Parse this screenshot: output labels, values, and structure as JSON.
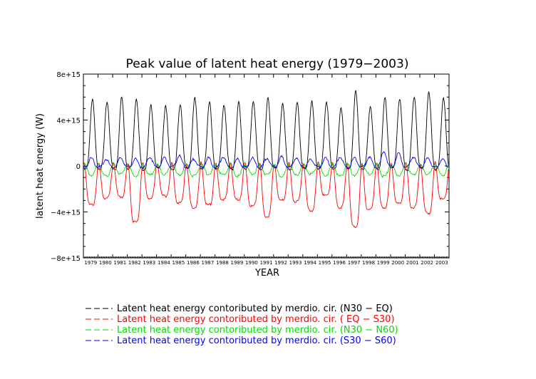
{
  "chart_data": {
    "type": "line",
    "title": "Peak value of latent heat energy (1979−2003)",
    "xlabel": "YEAR",
    "ylabel": "latent heat energy (W)",
    "xlim": [
      1979,
      2004
    ],
    "ylim": [
      -8000000000000000.0,
      8000000000000000.0
    ],
    "yticks": [
      {
        "value": 8000000000000000.0,
        "label": "8e+15"
      },
      {
        "value": 4000000000000000.0,
        "label": "4e+15"
      },
      {
        "value": 0,
        "label": "0"
      },
      {
        "value": -4000000000000000.0,
        "label": "−4e+15"
      },
      {
        "value": -8000000000000000.0,
        "label": "−8e+15"
      }
    ],
    "xtick_labels": [
      "1979",
      "1980",
      "1981",
      "1982",
      "1983",
      "1984",
      "1985",
      "1986",
      "1987",
      "1988",
      "1989",
      "1990",
      "1991",
      "1992",
      "1993",
      "1994",
      "1995",
      "1996",
      "1997",
      "1998",
      "1999",
      "2000",
      "2001",
      "2002",
      "2003"
    ],
    "legend_position": "bottom",
    "series": [
      {
        "name": "Latent heat energy contoributed by merdio. cir. (N30 −  EQ)",
        "color": "#000000",
        "annual_peaks": [
          5800000000000000.0,
          5600000000000000.0,
          6000000000000000.0,
          5900000000000000.0,
          5300000000000000.0,
          5200000000000000.0,
          5400000000000000.0,
          5900000000000000.0,
          5600000000000000.0,
          5300000000000000.0,
          5500000000000000.0,
          5700000000000000.0,
          5900000000000000.0,
          5400000000000000.0,
          5600000000000000.0,
          5600000000000000.0,
          5600000000000000.0,
          5100000000000000.0,
          6500000000000000.0,
          5200000000000000.0,
          5900000000000000.0,
          5900000000000000.0,
          6100000000000000.0,
          6400000000000000.0,
          6000000000000000.0
        ],
        "annual_troughs": [
          -300000000000000.0,
          -200000000000000.0,
          -300000000000000.0,
          -200000000000000.0,
          -300000000000000.0,
          -200000000000000.0,
          -300000000000000.0,
          -200000000000000.0,
          -300000000000000.0,
          -200000000000000.0,
          -300000000000000.0,
          -200000000000000.0,
          -300000000000000.0,
          -200000000000000.0,
          -300000000000000.0,
          -200000000000000.0,
          -300000000000000.0,
          -200000000000000.0,
          -300000000000000.0,
          -200000000000000.0,
          -300000000000000.0,
          -200000000000000.0,
          -300000000000000.0,
          -200000000000000.0,
          -300000000000000.0
        ]
      },
      {
        "name": "Latent heat energy contoributed by merdio. cir. ( EQ − S30)",
        "color": "#ff0000",
        "annual_peaks": [
          300000000000000.0,
          200000000000000.0,
          300000000000000.0,
          200000000000000.0,
          300000000000000.0,
          200000000000000.0,
          300000000000000.0,
          200000000000000.0,
          300000000000000.0,
          200000000000000.0,
          300000000000000.0,
          200000000000000.0,
          300000000000000.0,
          200000000000000.0,
          300000000000000.0,
          200000000000000.0,
          300000000000000.0,
          200000000000000.0,
          300000000000000.0,
          200000000000000.0,
          300000000000000.0,
          200000000000000.0,
          300000000000000.0,
          200000000000000.0,
          300000000000000.0
        ],
        "annual_troughs": [
          -3400000000000000.0,
          -2800000000000000.0,
          -2700000000000000.0,
          -4900000000000000.0,
          -2800000000000000.0,
          -2600000000000000.0,
          -3200000000000000.0,
          -3600000000000000.0,
          -3400000000000000.0,
          -2900000000000000.0,
          -2900000000000000.0,
          -3500000000000000.0,
          -4400000000000000.0,
          -3000000000000000.0,
          -3100000000000000.0,
          -3900000000000000.0,
          -2600000000000000.0,
          -3600000000000000.0,
          -5300000000000000.0,
          -3800000000000000.0,
          -3600000000000000.0,
          -3300000000000000.0,
          -3600000000000000.0,
          -4100000000000000.0,
          -2900000000000000.0
        ]
      },
      {
        "name": "Latent heat energy contoributed by merdio. cir. (N30 − N60)",
        "color": "#00dd00",
        "annual_peaks": [
          200000000000000.0,
          100000000000000.0,
          200000000000000.0,
          100000000000000.0,
          200000000000000.0,
          100000000000000.0,
          200000000000000.0,
          100000000000000.0,
          200000000000000.0,
          100000000000000.0,
          200000000000000.0,
          100000000000000.0,
          200000000000000.0,
          100000000000000.0,
          200000000000000.0,
          100000000000000.0,
          200000000000000.0,
          100000000000000.0,
          200000000000000.0,
          100000000000000.0,
          200000000000000.0,
          100000000000000.0,
          200000000000000.0,
          100000000000000.0,
          200000000000000.0
        ],
        "annual_troughs": [
          -800000000000000.0,
          -900000000000000.0,
          -700000000000000.0,
          -900000000000000.0,
          -800000000000000.0,
          -700000000000000.0,
          -800000000000000.0,
          -900000000000000.0,
          -700000000000000.0,
          -800000000000000.0,
          -900000000000000.0,
          -700000000000000.0,
          -800000000000000.0,
          -900000000000000.0,
          -800000000000000.0,
          -700000000000000.0,
          -800000000000000.0,
          -900000000000000.0,
          -800000000000000.0,
          -700000000000000.0,
          -900000000000000.0,
          -800000000000000.0,
          -800000000000000.0,
          -700000000000000.0,
          -800000000000000.0
        ]
      },
      {
        "name": "Latent heat energy contoributed by merdio. cir. (S30 − S60)",
        "color": "#0000ff",
        "annual_peaks": [
          700000000000000.0,
          600000000000000.0,
          700000000000000.0,
          600000000000000.0,
          800000000000000.0,
          700000000000000.0,
          900000000000000.0,
          600000000000000.0,
          700000000000000.0,
          800000000000000.0,
          600000000000000.0,
          700000000000000.0,
          700000000000000.0,
          800000000000000.0,
          700000000000000.0,
          600000000000000.0,
          700000000000000.0,
          800000000000000.0,
          700000000000000.0,
          800000000000000.0,
          1300000000000000.0,
          1100000000000000.0,
          800000000000000.0,
          700000000000000.0,
          600000000000000.0
        ],
        "annual_troughs": [
          -100000000000000.0,
          -100000000000000.0,
          -100000000000000.0,
          -100000000000000.0,
          -100000000000000.0,
          -100000000000000.0,
          -100000000000000.0,
          -100000000000000.0,
          -100000000000000.0,
          -100000000000000.0,
          -100000000000000.0,
          -100000000000000.0,
          -100000000000000.0,
          -100000000000000.0,
          -100000000000000.0,
          -100000000000000.0,
          -100000000000000.0,
          -100000000000000.0,
          -100000000000000.0,
          -100000000000000.0,
          -100000000000000.0,
          -100000000000000.0,
          -100000000000000.0,
          -100000000000000.0,
          -100000000000000.0
        ]
      }
    ]
  }
}
